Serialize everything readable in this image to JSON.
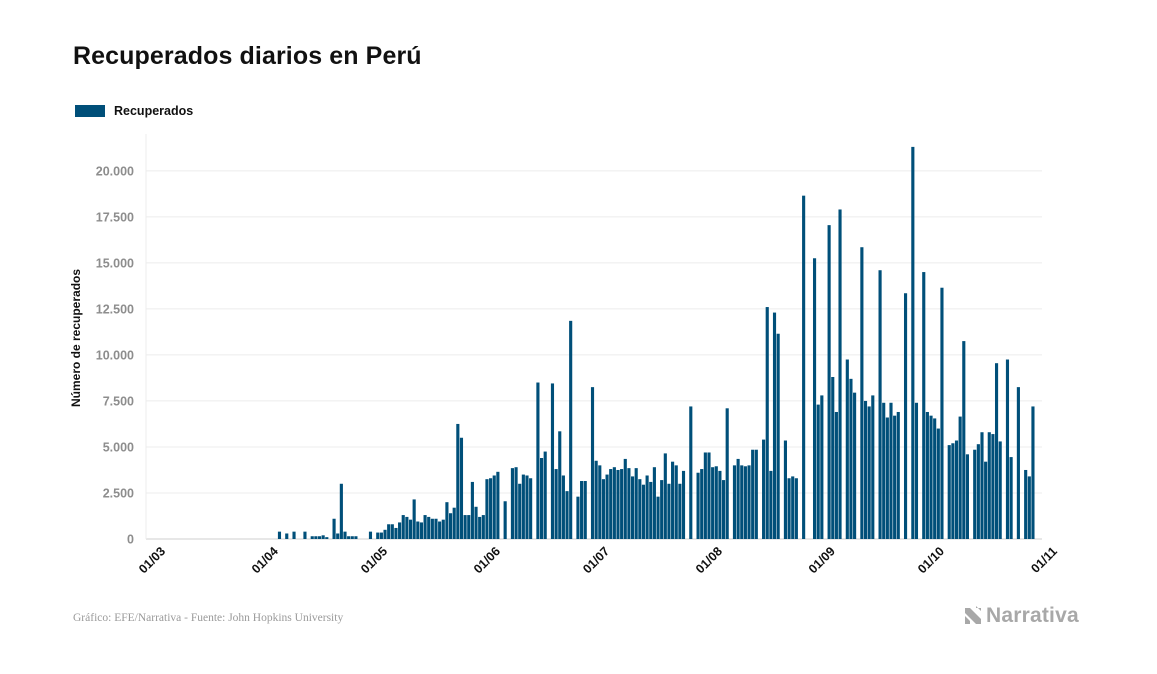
{
  "chart_data": {
    "type": "bar",
    "title": "Recuperados diarios en Perú",
    "ylabel": "Número de recuperados",
    "xlabel": "",
    "ylim": [
      0,
      22000
    ],
    "yticks": [
      0,
      2500,
      5000,
      7500,
      10000,
      12500,
      15000,
      17500,
      20000
    ],
    "ytick_labels": [
      "0",
      "2.500",
      "5.000",
      "7.500",
      "10.000",
      "12.500",
      "15.000",
      "17.500",
      "20.000"
    ],
    "xtick_labels": [
      "01/03",
      "01/04",
      "01/05",
      "01/06",
      "01/07",
      "01/08",
      "01/09",
      "01/10",
      "01/11"
    ],
    "xtick_day_offsets": [
      0,
      31,
      61,
      92,
      122,
      153,
      184,
      214,
      245
    ],
    "start_date": "2020-03-01",
    "grid": true,
    "legend_position": "top-left",
    "series": [
      {
        "name": "Recuperados",
        "color": "#004f79",
        "values": [
          0,
          0,
          0,
          0,
          0,
          0,
          0,
          0,
          0,
          0,
          0,
          0,
          0,
          0,
          0,
          0,
          0,
          0,
          0,
          0,
          0,
          0,
          0,
          0,
          0,
          0,
          0,
          0,
          0,
          0,
          0,
          0,
          400,
          0,
          300,
          0,
          400,
          0,
          0,
          400,
          0,
          150,
          150,
          150,
          200,
          100,
          0,
          1100,
          300,
          3000,
          400,
          150,
          150,
          150,
          0,
          0,
          0,
          400,
          0,
          350,
          350,
          500,
          800,
          800,
          600,
          900,
          1300,
          1200,
          1050,
          2150,
          950,
          900,
          1300,
          1200,
          1100,
          1100,
          950,
          1050,
          2000,
          1400,
          1700,
          6250,
          5500,
          1300,
          1300,
          3100,
          1750,
          1200,
          1300,
          3250,
          3300,
          3450,
          3650,
          0,
          2050,
          0,
          3850,
          3900,
          3000,
          3500,
          3450,
          3300,
          0,
          8500,
          4400,
          4750,
          0,
          8450,
          3800,
          5850,
          3450,
          2600,
          11850,
          0,
          2300,
          3150,
          3150,
          0,
          8250,
          4250,
          4000,
          3250,
          3500,
          3800,
          3900,
          3750,
          3800,
          4350,
          3850,
          3400,
          3850,
          3250,
          2950,
          3450,
          3100,
          3900,
          2300,
          3200,
          4650,
          3000,
          4200,
          4000,
          3000,
          3700,
          0,
          7200,
          0,
          3600,
          3800,
          4700,
          4700,
          3900,
          3950,
          3700,
          3200,
          7100,
          0,
          4000,
          4350,
          4000,
          3950,
          4000,
          4850,
          4850,
          0,
          5400,
          12600,
          3700,
          12300,
          11150,
          0,
          5350,
          3300,
          3400,
          3300,
          0,
          18650,
          0,
          0,
          15250,
          7300,
          7800,
          0,
          17050,
          8800,
          6900,
          17900,
          0,
          9750,
          8700,
          7950,
          0,
          15850,
          7500,
          7200,
          7800,
          0,
          14600,
          7400,
          6600,
          7400,
          6700,
          6900,
          0,
          13350,
          0,
          21300,
          7400,
          0,
          14500,
          6900,
          6700,
          6550,
          6000,
          13650,
          0,
          5100,
          5200,
          5350,
          6650,
          10750,
          4600,
          0,
          4850,
          5150,
          5800,
          4200,
          5800,
          5700,
          9550,
          5300,
          0,
          9750,
          4450,
          0,
          8250,
          0,
          3750,
          3400,
          7200
        ]
      }
    ]
  },
  "source_text": "Gráfico: EFE/Narrativa - Fuente: John Hopkins University",
  "brand": {
    "name": "Narrativa",
    "icon": "narrativa-logo-icon"
  }
}
